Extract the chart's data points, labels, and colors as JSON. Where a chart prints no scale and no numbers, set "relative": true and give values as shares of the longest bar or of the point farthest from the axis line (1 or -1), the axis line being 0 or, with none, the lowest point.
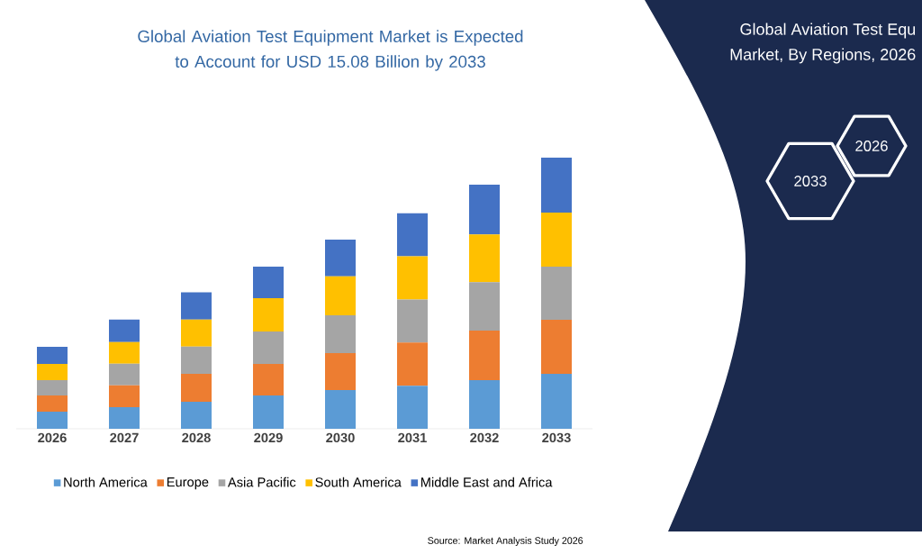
{
  "chart_data": {
    "type": "bar",
    "stacked": true,
    "relative": true,
    "title": "Global Aviation Test Equipment Market is Expected to Account for USD 15.08 Billion by 2033",
    "categories": [
      "2026",
      "2027",
      "2028",
      "2029",
      "2030",
      "2031",
      "2032",
      "2033"
    ],
    "series": [
      {
        "name": "North America",
        "color": "#5b9bd5",
        "values": [
          0.063,
          0.08,
          0.1,
          0.123,
          0.143,
          0.159,
          0.179,
          0.203
        ]
      },
      {
        "name": "Europe",
        "color": "#ed7d31",
        "values": [
          0.06,
          0.08,
          0.103,
          0.116,
          0.136,
          0.159,
          0.183,
          0.199
        ]
      },
      {
        "name": "Asia Pacific",
        "color": "#a5a5a5",
        "values": [
          0.056,
          0.08,
          0.1,
          0.12,
          0.14,
          0.159,
          0.179,
          0.196
        ]
      },
      {
        "name": "South America",
        "color": "#ffc000",
        "values": [
          0.06,
          0.08,
          0.1,
          0.123,
          0.143,
          0.159,
          0.176,
          0.199
        ]
      },
      {
        "name": "Middle East and Africa",
        "color": "#4472c4",
        "values": [
          0.063,
          0.083,
          0.1,
          0.116,
          0.136,
          0.159,
          0.183,
          0.203
        ]
      }
    ],
    "legend": "bottom",
    "annotations": [
      "Source: Market Analysis Study 2026",
      "Global Aviation Test Equ",
      "Market, By Regions, 2026",
      "2026",
      "2033"
    ]
  }
}
